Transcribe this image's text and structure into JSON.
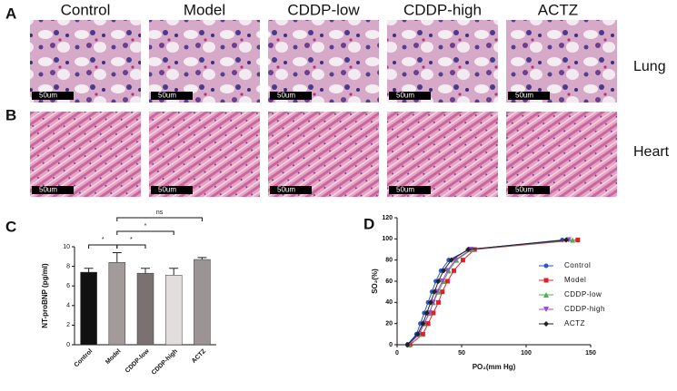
{
  "panel_labels": [
    "A",
    "B",
    "C",
    "D"
  ],
  "columns": [
    "Control",
    "Model",
    "CDDP-low",
    "CDDP-high",
    "ACTZ"
  ],
  "rows": [
    "Lung",
    "Heart"
  ],
  "scale_bar": "50um",
  "chart_data": [
    {
      "type": "bar",
      "ylabel": "NT-proBNP (pg/ml)",
      "categories": [
        "Control",
        "Model",
        "CDDP-low",
        "CDDP-high",
        "ACTZ"
      ],
      "values": [
        7.4,
        8.4,
        7.3,
        7.1,
        8.7
      ],
      "errors": [
        0.4,
        1.0,
        0.5,
        0.7,
        0.2
      ],
      "colors": [
        "#111111",
        "#a39a9a",
        "#7b7171",
        "#e2dede",
        "#9c9494"
      ],
      "ylim": [
        0,
        10
      ],
      "yticks": [
        0,
        2,
        4,
        6,
        8,
        10
      ],
      "annotations": [
        {
          "from": 0,
          "to": 1,
          "label": "*"
        },
        {
          "from": 1,
          "to": 2,
          "label": "*"
        },
        {
          "from": 1,
          "to": 3,
          "label": "*"
        },
        {
          "from": 1,
          "to": 4,
          "label": "ns"
        }
      ]
    },
    {
      "type": "line",
      "xlabel": "PO₂(mm Hg)",
      "ylabel": "SO₂(%)",
      "xlim": [
        0,
        150
      ],
      "xticks": [
        0,
        50,
        100,
        150
      ],
      "ylim": [
        0,
        120
      ],
      "yticks": [
        0,
        20,
        40,
        60,
        80,
        100,
        120
      ],
      "legend": "right",
      "series": [
        {
          "name": "Control",
          "color": "#2a56c6",
          "marker": "circle",
          "x": [
            8,
            15,
            18,
            21,
            24,
            27,
            30,
            34,
            40,
            56,
            128
          ],
          "values": [
            0,
            10,
            20,
            30,
            40,
            50,
            60,
            70,
            80,
            90,
            99
          ]
        },
        {
          "name": "Model",
          "color": "#e0202a",
          "marker": "square",
          "x": [
            10,
            20,
            24,
            28,
            32,
            35,
            39,
            44,
            51,
            60,
            140
          ],
          "values": [
            0,
            10,
            20,
            30,
            40,
            50,
            60,
            70,
            80,
            90,
            99
          ]
        },
        {
          "name": "CDDP-low",
          "color": "#4caf50",
          "marker": "triangle-up",
          "x": [
            9,
            17,
            21,
            25,
            28,
            32,
            36,
            40,
            46,
            58,
            136
          ],
          "values": [
            0,
            10,
            20,
            30,
            40,
            50,
            60,
            70,
            80,
            90,
            99
          ]
        },
        {
          "name": "CDDP-high",
          "color": "#9b4fc9",
          "marker": "triangle-down",
          "x": [
            9,
            17,
            21,
            25,
            28,
            31,
            35,
            39,
            45,
            57,
            133
          ],
          "values": [
            0,
            10,
            20,
            30,
            40,
            50,
            60,
            70,
            80,
            90,
            99
          ]
        },
        {
          "name": "ACTZ",
          "color": "#222222",
          "marker": "diamond",
          "x": [
            8,
            16,
            20,
            23,
            26,
            29,
            32,
            36,
            42,
            55,
            131
          ],
          "values": [
            0,
            10,
            20,
            30,
            40,
            50,
            60,
            70,
            80,
            90,
            99
          ]
        }
      ]
    }
  ]
}
